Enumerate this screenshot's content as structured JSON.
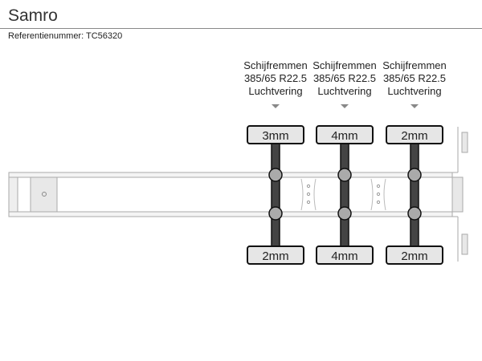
{
  "header": {
    "title": "Samro",
    "reference": "Referentienummer: TC56320"
  },
  "axles": [
    {
      "brake": "Schijfremmen",
      "tire": "385/65 R22.5",
      "suspension": "Luchtvering",
      "left_tread": "3mm",
      "right_tread": "2mm"
    },
    {
      "brake": "Schijfremmen",
      "tire": "385/65 R22.5",
      "suspension": "Luchtvering",
      "left_tread": "4mm",
      "right_tread": "4mm"
    },
    {
      "brake": "Schijfremmen",
      "tire": "385/65 R22.5",
      "suspension": "Luchtvering",
      "left_tread": "2mm",
      "right_tread": "2mm"
    }
  ],
  "colors": {
    "axle": "#444444",
    "hub": "#aaaaaa",
    "tire_box": "#e6e6e6",
    "frame": "#bbbbbb"
  }
}
